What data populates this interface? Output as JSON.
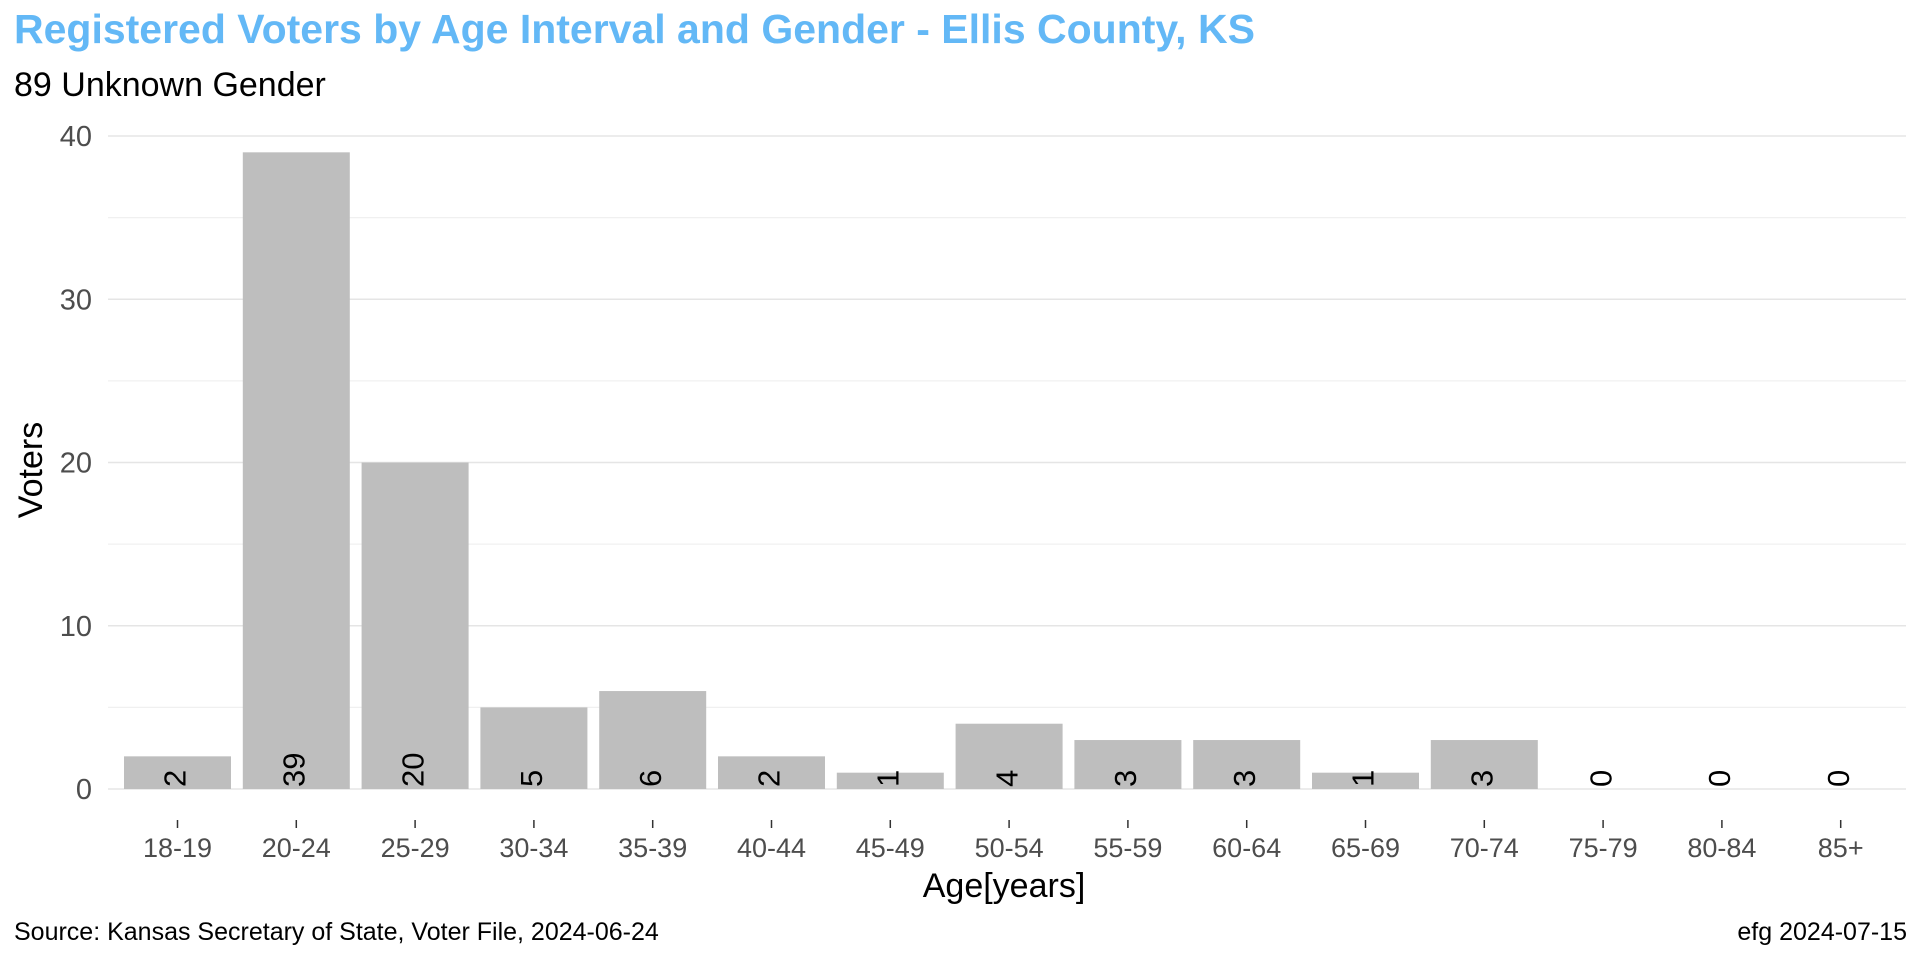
{
  "chart_data": {
    "type": "bar",
    "title": "Registered Voters by Age Interval and Gender - Ellis County, KS",
    "subtitle": "89 Unknown Gender",
    "xlabel": "Age[years]",
    "ylabel": "Voters",
    "categories": [
      "18-19",
      "20-24",
      "25-29",
      "30-34",
      "35-39",
      "40-44",
      "45-49",
      "50-54",
      "55-59",
      "60-64",
      "65-69",
      "70-74",
      "75-79",
      "80-84",
      "85+"
    ],
    "values": [
      2,
      39,
      20,
      5,
      6,
      2,
      1,
      4,
      3,
      3,
      1,
      3,
      0,
      0,
      0
    ],
    "ylim": [
      0,
      40
    ],
    "yticks": [
      0,
      10,
      20,
      30,
      40
    ],
    "grid": true,
    "bar_color": "#bebebe",
    "title_color": "#63b8f6",
    "source": "Source:  Kansas Secretary of State, Voter File, 2024-06-24",
    "credit": "efg 2024-07-15"
  }
}
